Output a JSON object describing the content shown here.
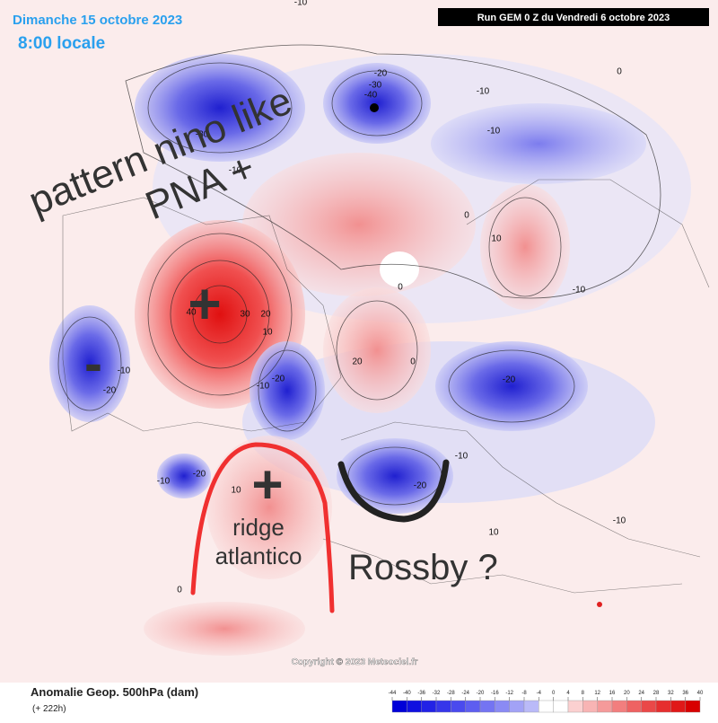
{
  "header": {
    "date": "Dimanche 15 octobre 2023",
    "time": "8:00 locale",
    "run": "Run GEM 0 Z du Vendredi 6 octobre 2023"
  },
  "annotations": {
    "pattern": "pattern nino like",
    "pna": "PNA +",
    "plus_pacific": "+",
    "minus_us": "-",
    "plus_atlantic": "+",
    "ridge": "ridge atlantico",
    "rossby": "Rossby ?"
  },
  "contour_labels": [
    "-10",
    "-30",
    "-10",
    "-20",
    "-30",
    "-40",
    "-10",
    "-10",
    "0",
    "0",
    "10",
    "0",
    "-10",
    "40",
    "30",
    "20",
    "10",
    "-10",
    "-20",
    "-10",
    "-20",
    "20",
    "0",
    "-20",
    "-10",
    "-20",
    "-10",
    "-20",
    "10",
    "0",
    "10",
    "-10"
  ],
  "copyright": "Copyright © 2023 Meteociel.fr",
  "footer": {
    "title": "Anomalie Geop. 500hPa (dam)",
    "lead": "(+ 222h)"
  },
  "colorbar": {
    "ticks": [
      -44,
      -40,
      -36,
      -32,
      -28,
      -24,
      -20,
      -16,
      -12,
      -8,
      -4,
      0,
      4,
      8,
      12,
      16,
      20,
      24,
      28,
      32,
      36,
      40
    ],
    "colors": [
      "#0000d8",
      "#1010e0",
      "#2222e6",
      "#3636ea",
      "#4a4aee",
      "#5e5ef0",
      "#7474f2",
      "#8a8af4",
      "#a2a2f6",
      "#babaf8",
      "#ffffff",
      "#ffffff",
      "#fbd0d0",
      "#f8b4b4",
      "#f59a9a",
      "#f27e7e",
      "#ee6262",
      "#ea4848",
      "#e62e2e",
      "#e01818",
      "#d80000"
    ]
  }
}
